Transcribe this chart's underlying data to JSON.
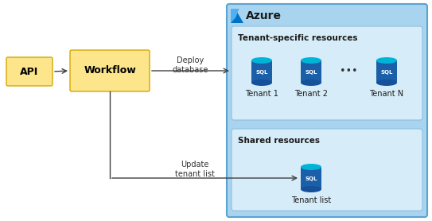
{
  "bg_color": "#ffffff",
  "azure_box_color": "#a8d4f0",
  "azure_box_border": "#5ba3d0",
  "tenant_specific_box_color": "#d6ecf8",
  "shared_box_color": "#d6ecf8",
  "inner_box_border": "#90c0dc",
  "api_box_color": "#fce58a",
  "api_box_border": "#d4a800",
  "workflow_box_color": "#fce58a",
  "workflow_box_border": "#d4a800",
  "api_label": "API",
  "workflow_label": "Workflow",
  "azure_label": "Azure",
  "tenant_specific_label": "Tenant-specific resources",
  "shared_label": "Shared resources",
  "deploy_label": "Deploy\ndatabase",
  "update_label": "Update\ntenant list",
  "tenant_labels": [
    "Tenant 1",
    "Tenant 2",
    "Tenant N"
  ],
  "tenant_list_label": "Tenant list",
  "sql_body_color": "#1a5fa8",
  "sql_top_color": "#00b4d8",
  "sql_bottom_color": "#15509a",
  "sql_text_color": "#ffffff",
  "arrow_color": "#404040",
  "dots": "• • •"
}
